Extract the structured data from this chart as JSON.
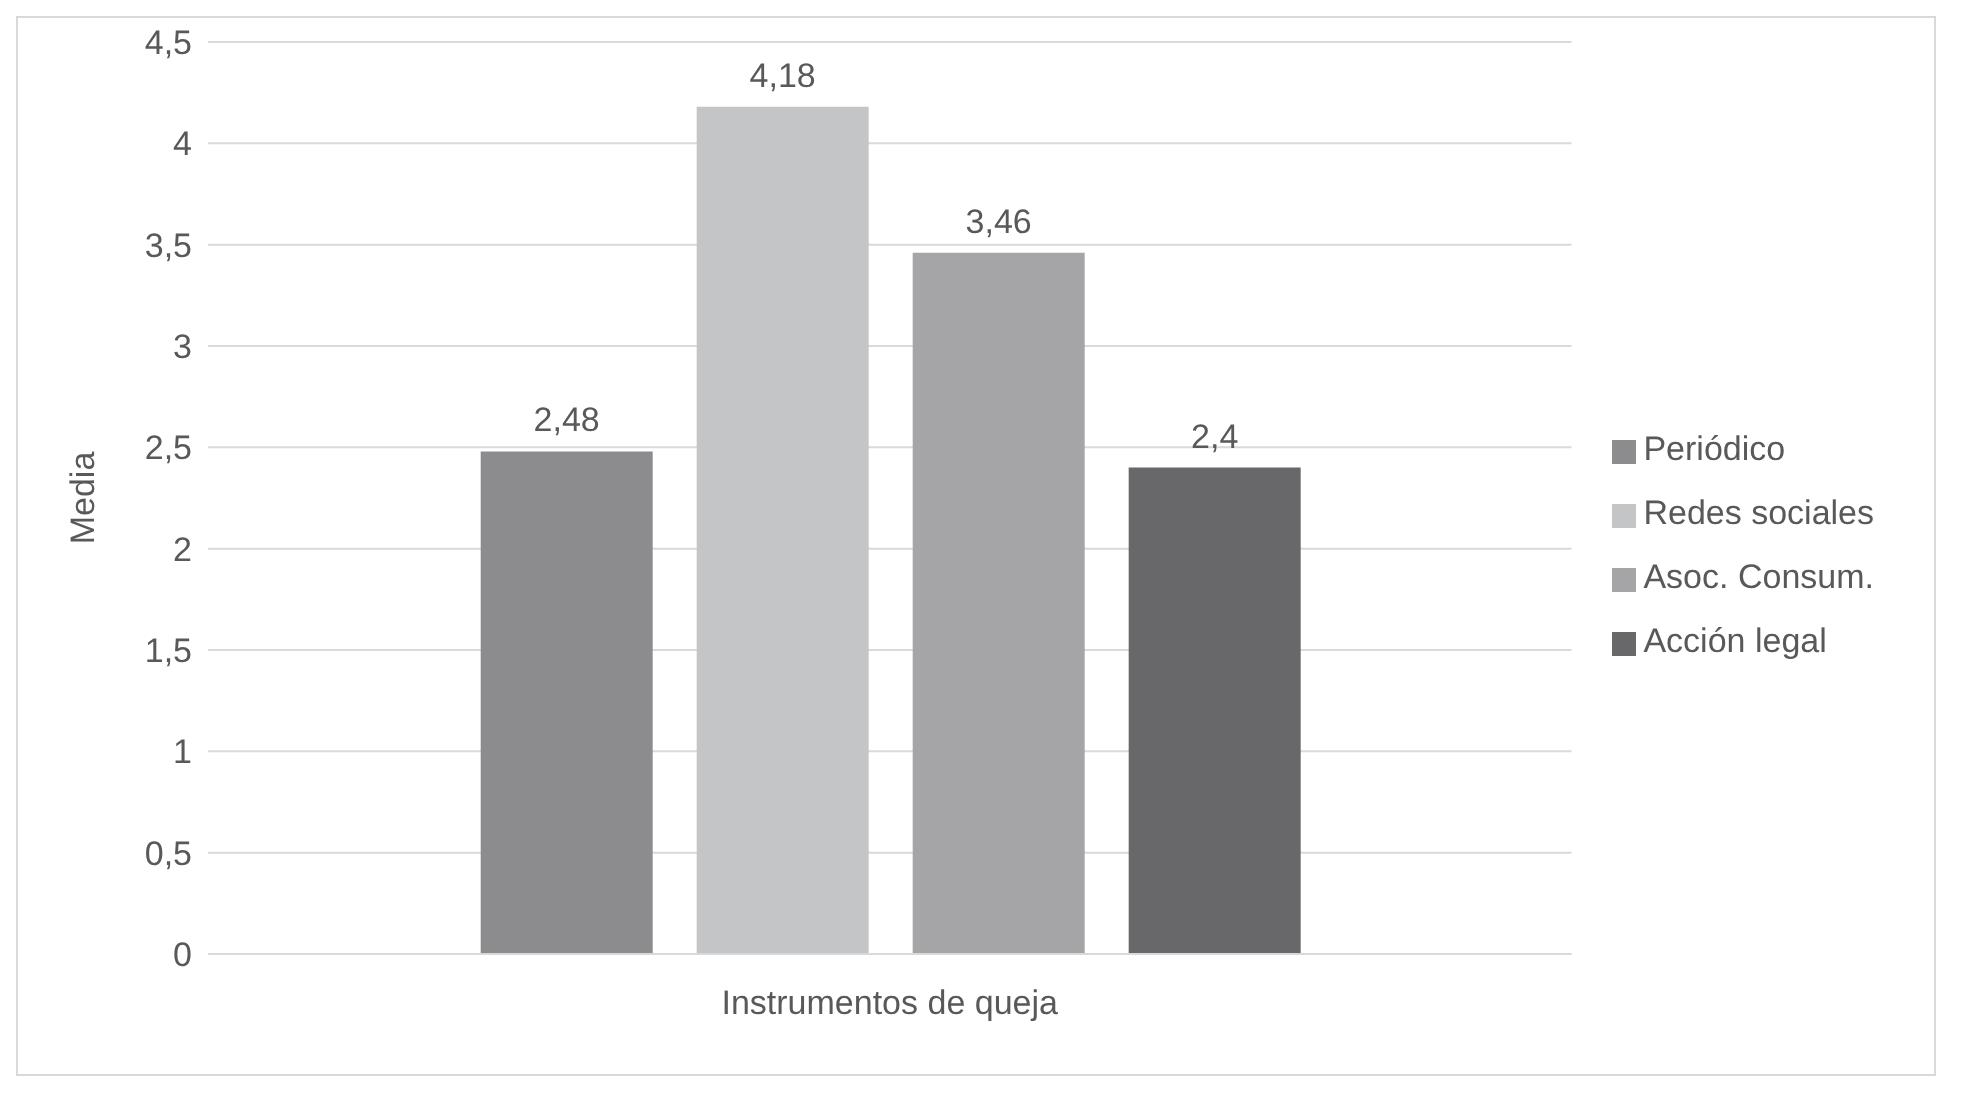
{
  "chart_data": {
    "type": "bar",
    "categories": [
      "Instrumentos de queja"
    ],
    "ylabel": "Media",
    "series": [
      {
        "name": "Periódico",
        "color": "#8c8c8e",
        "values": [
          2.48
        ],
        "value_labels": [
          "2,48"
        ]
      },
      {
        "name": "Redes sociales",
        "color": "#c4c5c7",
        "values": [
          4.18
        ],
        "value_labels": [
          "4,18"
        ]
      },
      {
        "name": "Asoc. Consum.",
        "color": "#a5a5a7",
        "values": [
          3.46
        ],
        "value_labels": [
          "3,46"
        ]
      },
      {
        "name": "Acción legal",
        "color": "#68686a",
        "values": [
          2.4
        ],
        "value_labels": [
          "2,4"
        ]
      }
    ],
    "ylim": [
      0,
      4.5
    ],
    "yticks": [
      0,
      {
        "value": 0.5,
        "label": "0,5"
      },
      1,
      {
        "value": 1.5,
        "label": "1,5"
      },
      2,
      {
        "value": 2.5,
        "label": "2,5"
      },
      3,
      {
        "value": 3.5,
        "label": "3,5"
      },
      4,
      {
        "value": 4.5,
        "label": "4,5"
      }
    ],
    "grid": "y",
    "legend": "right"
  }
}
